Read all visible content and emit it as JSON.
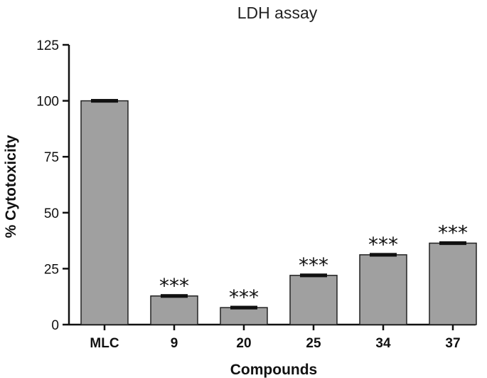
{
  "chart_data": {
    "type": "bar",
    "title": "LDH assay",
    "xlabel": "Compounds",
    "ylabel": "% Cytotoxicity",
    "ylim": [
      0,
      125
    ],
    "yticks": [
      "0",
      "25",
      "50",
      "75",
      "100",
      "125"
    ],
    "categories": [
      "MLC",
      "9",
      "20",
      "25",
      "34",
      "37"
    ],
    "values": [
      100,
      12.8,
      7.6,
      22,
      31.2,
      36.4
    ],
    "errors": [
      0.5,
      0.5,
      0.5,
      0.5,
      0.5,
      0.5
    ],
    "significance": [
      "",
      "***",
      "***",
      "***",
      "***",
      "***"
    ],
    "bar_color": "#a0a0a0",
    "grid": false,
    "legend": "none"
  }
}
